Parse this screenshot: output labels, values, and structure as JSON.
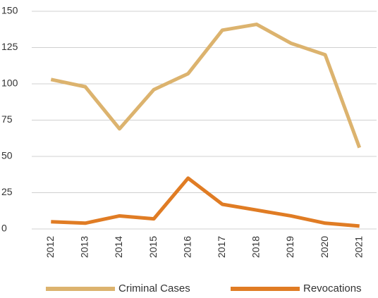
{
  "chart_data": {
    "type": "line",
    "categories": [
      "2012",
      "2013",
      "2014",
      "2015",
      "2016",
      "2017",
      "2018",
      "2019",
      "2020",
      "2021"
    ],
    "series": [
      {
        "name": "Criminal Cases",
        "color": "#dcb36e",
        "values": [
          103,
          98,
          69,
          96,
          107,
          137,
          141,
          128,
          120,
          56
        ]
      },
      {
        "name": "Revocations",
        "color": "#e07c24",
        "values": [
          5,
          4,
          9,
          7,
          35,
          17,
          13,
          9,
          4,
          2
        ]
      }
    ],
    "ylim": [
      0,
      150
    ],
    "yticks": [
      0,
      25,
      50,
      75,
      100,
      125,
      150
    ],
    "grid": true,
    "legend": "bottom"
  }
}
